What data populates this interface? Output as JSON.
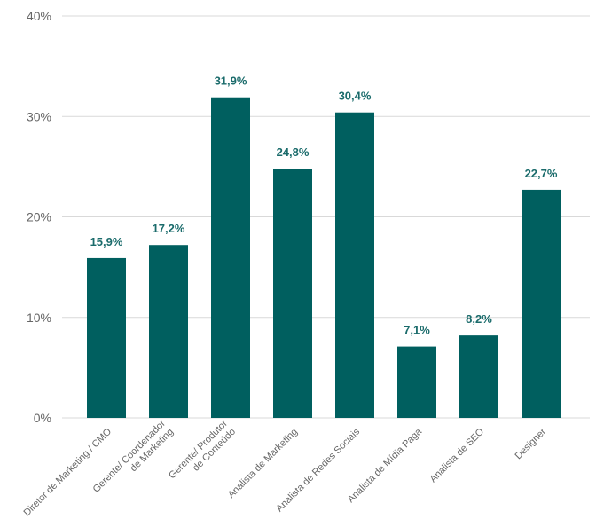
{
  "chart_data": {
    "type": "bar",
    "title": "",
    "xlabel": "",
    "ylabel": "",
    "categories": [
      [
        "Diretor de Marketing / CMO"
      ],
      [
        "Gerente/ Coordenador",
        "de Marketing"
      ],
      [
        "Gerente/ Produtor",
        "de Conteúdo"
      ],
      [
        "Analista de Marketing"
      ],
      [
        "Analista de Redes Sociais"
      ],
      [
        "Analista de Mídia Paga"
      ],
      [
        "Analista de SEO"
      ],
      [
        "Designer"
      ]
    ],
    "values": [
      15.9,
      17.2,
      31.9,
      24.8,
      30.4,
      7.1,
      8.2,
      22.7
    ],
    "data_labels": [
      "15,9%",
      "17,2%",
      "31,9%",
      "24,8%",
      "30,4%",
      "7,1%",
      "8,2%",
      "22,7%"
    ],
    "ylim": [
      0,
      40
    ],
    "yticks": [
      0,
      10,
      20,
      30,
      40
    ],
    "ytick_labels": [
      "0%",
      "10%",
      "20%",
      "30%",
      "40%"
    ],
    "grid": true,
    "legend": "none",
    "colors": {
      "bar": "#005f5f",
      "label": "#1a6b6b",
      "grid": "#d9d9d9",
      "axis_text": "#666666"
    }
  }
}
